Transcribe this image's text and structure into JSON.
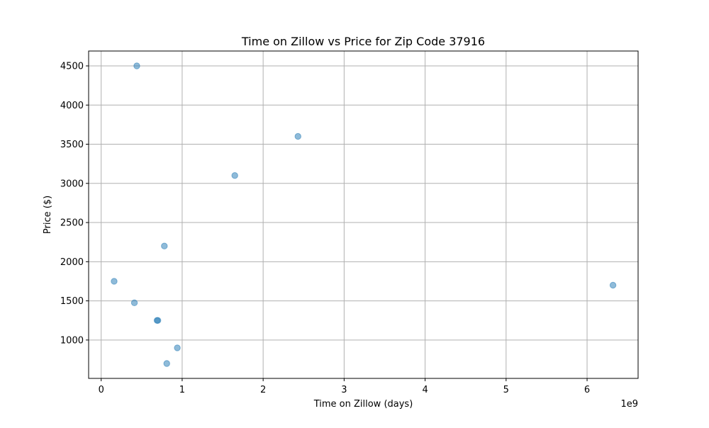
{
  "chart_data": {
    "type": "scatter",
    "title": "Time on Zillow vs Price for Zip Code 37916",
    "xlabel": "Time on Zillow (days)",
    "ylabel": "Price ($)",
    "x_offset_label": "1e9",
    "xlim": [
      -0.155,
      6.63
    ],
    "ylim": [
      510,
      4690
    ],
    "x_ticks": [
      0,
      1,
      2,
      3,
      4,
      5,
      6
    ],
    "x_tick_labels": [
      "0",
      "1",
      "2",
      "3",
      "4",
      "5",
      "6"
    ],
    "y_ticks": [
      1000,
      1500,
      2000,
      2500,
      3000,
      3500,
      4000,
      4500
    ],
    "y_tick_labels": [
      "1000",
      "1500",
      "2000",
      "2500",
      "3000",
      "3500",
      "4000",
      "4500"
    ],
    "grid": true,
    "point_color": "#1f77b4",
    "point_alpha": 0.5,
    "points": [
      {
        "x": 0.44,
        "y": 4500
      },
      {
        "x": 2.43,
        "y": 3600
      },
      {
        "x": 1.65,
        "y": 3100
      },
      {
        "x": 0.78,
        "y": 2200
      },
      {
        "x": 0.16,
        "y": 1750
      },
      {
        "x": 6.32,
        "y": 1700
      },
      {
        "x": 0.41,
        "y": 1475
      },
      {
        "x": 0.69,
        "y": 1250
      },
      {
        "x": 0.7,
        "y": 1250
      },
      {
        "x": 0.94,
        "y": 900
      },
      {
        "x": 0.81,
        "y": 700
      }
    ]
  }
}
